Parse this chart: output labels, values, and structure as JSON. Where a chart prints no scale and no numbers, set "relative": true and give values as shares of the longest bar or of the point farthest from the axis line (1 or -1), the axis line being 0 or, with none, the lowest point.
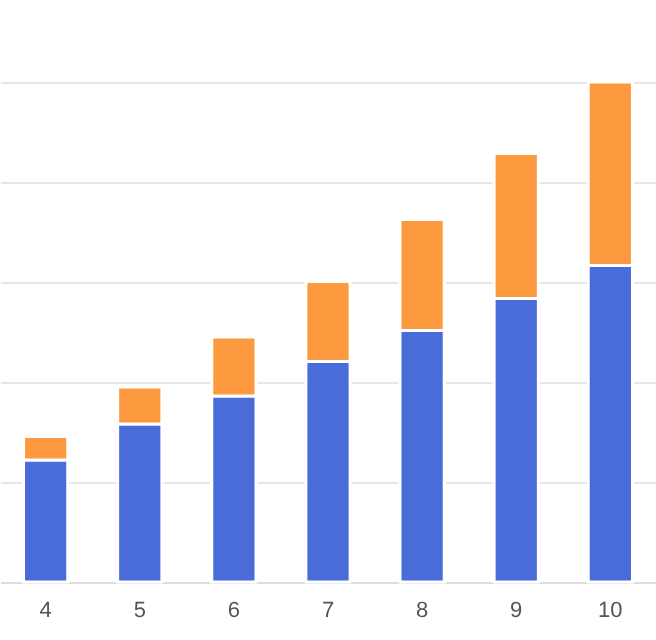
{
  "chart_data": {
    "type": "bar",
    "stacked": true,
    "relative": true,
    "grid": "y",
    "categories": [
      "4",
      "5",
      "6",
      "7",
      "8",
      "9",
      "10"
    ],
    "series": [
      {
        "color": "#4a6cd8",
        "values": [
          0.244,
          0.316,
          0.372,
          0.441,
          0.503,
          0.567,
          0.633
        ]
      },
      {
        "color": "#fd9a3f",
        "values": [
          0.047,
          0.074,
          0.118,
          0.16,
          0.222,
          0.29,
          0.367
        ]
      }
    ]
  }
}
